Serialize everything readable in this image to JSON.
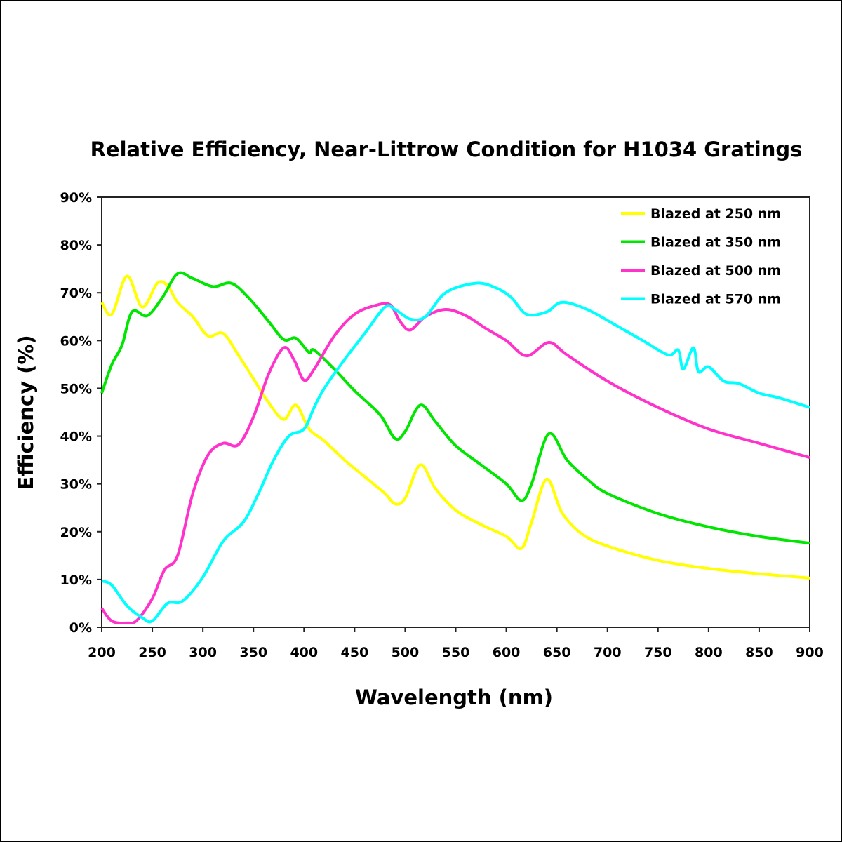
{
  "chart_data": {
    "type": "line",
    "title": "Relative Efficiency, Near-Littrow Condition for H1034 Gratings",
    "xlabel": "Wavelength (nm)",
    "ylabel": "Efficiency (%)",
    "xlim": [
      200,
      900
    ],
    "ylim": [
      0,
      90
    ],
    "xticks": [
      "200",
      "250",
      "300",
      "350",
      "400",
      "450",
      "500",
      "550",
      "600",
      "650",
      "700",
      "750",
      "800",
      "850",
      "900"
    ],
    "yticks": [
      "0%",
      "10%",
      "20%",
      "30%",
      "40%",
      "50%",
      "60%",
      "70%",
      "80%",
      "90%"
    ],
    "grid": false,
    "legend_position": "top-right",
    "series": [
      {
        "name": "Blazed at 250 nm",
        "color": "#ffff00",
        "x": [
          200,
          210,
          225,
          240,
          255,
          265,
          275,
          290,
          305,
          320,
          335,
          350,
          365,
          380,
          392,
          405,
          420,
          440,
          460,
          480,
          490,
          500,
          515,
          530,
          550,
          575,
          600,
          615,
          625,
          640,
          655,
          675,
          700,
          750,
          800,
          850,
          900
        ],
        "y": [
          68,
          65.5,
          73.5,
          67,
          72,
          71.5,
          68,
          65,
          61,
          61.5,
          57,
          52,
          47,
          43.5,
          46.5,
          41.5,
          39,
          35,
          31.5,
          28,
          25.8,
          27,
          34,
          29,
          24.5,
          21.5,
          19,
          16.5,
          22,
          31,
          24,
          19.5,
          17,
          14,
          12.3,
          11.2,
          10.3
        ]
      },
      {
        "name": "Blazed at 350 nm",
        "color": "#00e600",
        "x": [
          200,
          210,
          220,
          230,
          245,
          260,
          275,
          290,
          310,
          328,
          345,
          365,
          380,
          392,
          405,
          410,
          430,
          450,
          475,
          490,
          500,
          515,
          530,
          550,
          575,
          600,
          615,
          625,
          642,
          660,
          680,
          700,
          750,
          800,
          850,
          900
        ],
        "y": [
          49,
          55,
          59,
          66,
          65.2,
          69,
          74,
          73,
          71.3,
          72,
          69,
          64,
          60.2,
          60.5,
          57.5,
          58,
          54,
          49.5,
          44.5,
          39.5,
          41,
          46.5,
          43,
          38,
          34,
          30,
          26.5,
          30,
          40.5,
          35,
          31,
          28,
          23.8,
          21,
          19,
          17.6
        ]
      },
      {
        "name": "Blazed at 500 nm",
        "color": "#ff33cc",
        "x": [
          200,
          210,
          225,
          235,
          250,
          262,
          275,
          290,
          305,
          320,
          335,
          350,
          365,
          380,
          390,
          400,
          410,
          430,
          450,
          470,
          485,
          495,
          505,
          520,
          540,
          560,
          580,
          600,
          620,
          642,
          660,
          700,
          750,
          800,
          850,
          900
        ],
        "y": [
          4,
          1.3,
          0.9,
          1.5,
          6,
          12,
          15,
          28,
          36,
          38.5,
          38.2,
          44,
          53,
          58.5,
          56,
          51.7,
          54,
          61,
          65.5,
          67.3,
          67.5,
          64,
          62.2,
          65,
          66.5,
          65.2,
          62.5,
          60,
          56.8,
          59.6,
          57,
          51.5,
          46,
          41.5,
          38.5,
          35.5
        ]
      },
      {
        "name": "Blazed at 570 nm",
        "color": "#00ffff",
        "x": [
          200,
          210,
          225,
          240,
          250,
          265,
          280,
          300,
          320,
          340,
          355,
          370,
          385,
          400,
          410,
          420,
          440,
          460,
          480,
          490,
          505,
          520,
          540,
          570,
          590,
          605,
          620,
          640,
          655,
          680,
          710,
          735,
          760,
          770,
          775,
          785,
          790,
          800,
          815,
          830,
          850,
          870,
          900
        ],
        "y": [
          9.7,
          8.8,
          4.5,
          2,
          1.3,
          5,
          5.5,
          10.5,
          18,
          22,
          28,
          35,
          40,
          41.5,
          46,
          50,
          56,
          61.5,
          67,
          66.5,
          64.5,
          65,
          70,
          72,
          71,
          69,
          65.5,
          66,
          68,
          66.5,
          63,
          60,
          57,
          58,
          54,
          58.5,
          53.5,
          54.5,
          51.5,
          51,
          49,
          48,
          46
        ]
      }
    ]
  }
}
